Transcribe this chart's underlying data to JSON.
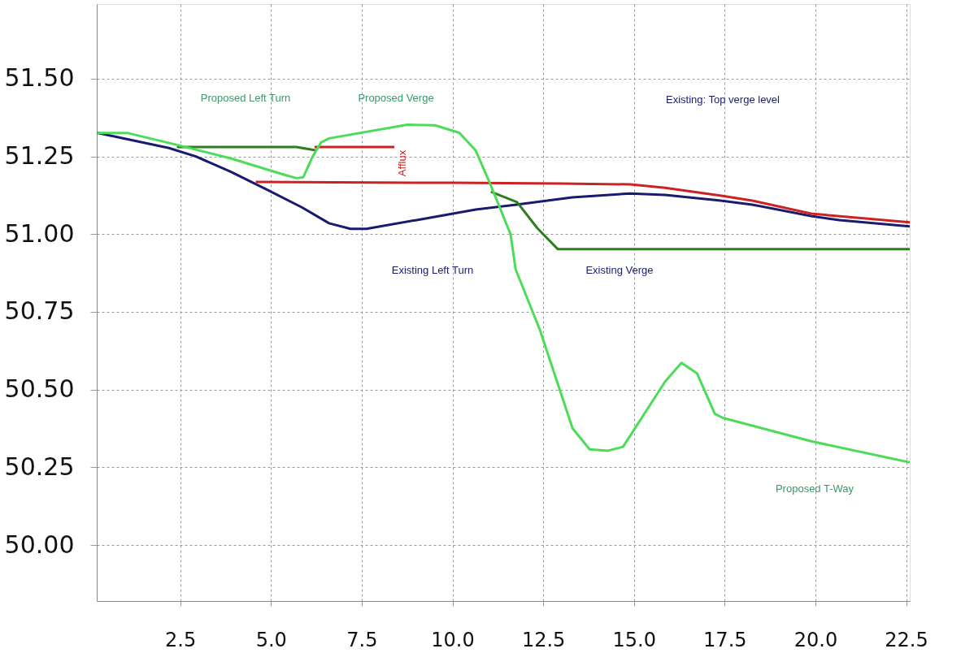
{
  "chart_data": {
    "type": "line",
    "xlim": [
      0.2,
      22.6
    ],
    "ylim": [
      49.82,
      51.74
    ],
    "xticks": [
      {
        "value": 2.5,
        "label": "2.5"
      },
      {
        "value": 5,
        "label": "5.0"
      },
      {
        "value": 7.5,
        "label": "7.5"
      },
      {
        "value": 10,
        "label": "10.0"
      },
      {
        "value": 12.5,
        "label": "12.5"
      },
      {
        "value": 15,
        "label": "15.0"
      },
      {
        "value": 17.5,
        "label": "17.5"
      },
      {
        "value": 20,
        "label": "20.0"
      },
      {
        "value": 22.5,
        "label": "22.5"
      }
    ],
    "yticks": [
      {
        "value": 50,
        "label": "50.00"
      },
      50.25,
      {
        "value": 50.5,
        "label": "50.50"
      },
      50.75,
      {
        "value": 51,
        "label": "51.00"
      },
      51.25,
      {
        "value": 51.5,
        "label": "51.50"
      }
    ],
    "grid": true,
    "legend": false,
    "marker": "none",
    "line_style": "solid",
    "series": [
      {
        "color": "#1a1a6e",
        "x": [
          0.21,
          2.19,
          2.93,
          3.9,
          4.94,
          5.84,
          6.6,
          7.19,
          7.63,
          9.14,
          10.64,
          11.76,
          13.3,
          14.9,
          15.86,
          17.39,
          18.26,
          19.88,
          20.66,
          22.6
        ],
        "values": [
          51.326,
          51.277,
          51.25,
          51.2,
          51.14,
          51.087,
          51.035,
          51.017,
          51.017,
          51.048,
          51.079,
          51.095,
          51.118,
          51.131,
          51.126,
          51.108,
          51.095,
          51.058,
          51.045,
          51.025
        ]
      },
      {
        "color": "#cc2222",
        "x": [
          4.58,
          10.0,
          13.0,
          14.9,
          15.86,
          17.45,
          18.26,
          19.88,
          22.6
        ],
        "values": [
          51.168,
          51.165,
          51.163,
          51.16,
          51.149,
          51.123,
          51.108,
          51.066,
          51.038
        ]
      },
      {
        "color": "#cc2222",
        "x": [
          6.2,
          8.4
        ],
        "values": [
          51.28,
          51.28
        ]
      },
      {
        "color": "#2e7d1e",
        "x": [
          2.41,
          5.7,
          6.22
        ],
        "values": [
          51.28,
          51.28,
          51.27
        ]
      },
      {
        "color": "#2e7d1e",
        "x": [
          11.06,
          11.78,
          12.34,
          12.9,
          22.6
        ],
        "values": [
          51.136,
          51.103,
          51.019,
          50.952,
          50.952
        ]
      },
      {
        "color": "#4cdc5a",
        "x": [
          0.21,
          1.06,
          2.41,
          3.91,
          5.39,
          5.71,
          5.89,
          6.15,
          6.38,
          6.6,
          8.76,
          9.52,
          10.19,
          10.64,
          11.0,
          11.6,
          11.74,
          12.41,
          13.31,
          13.78,
          14.27,
          14.7,
          15.86,
          16.31,
          16.74,
          17.23,
          17.45,
          19.88,
          22.6
        ],
        "values": [
          51.325,
          51.325,
          51.287,
          51.243,
          51.19,
          51.18,
          51.183,
          51.25,
          51.295,
          51.308,
          51.352,
          51.35,
          51.326,
          51.269,
          51.173,
          51.0,
          50.887,
          50.692,
          50.375,
          50.308,
          50.303,
          50.316,
          50.526,
          50.586,
          50.552,
          50.422,
          50.409,
          50.334,
          50.266
        ]
      }
    ],
    "annotations": [
      "Proposed Left Turn",
      "Proposed Verge",
      "Existing Left Turn",
      "Existing Verge",
      "Proposed T-Way",
      "Afflux",
      "Existing: Top verge level"
    ]
  }
}
